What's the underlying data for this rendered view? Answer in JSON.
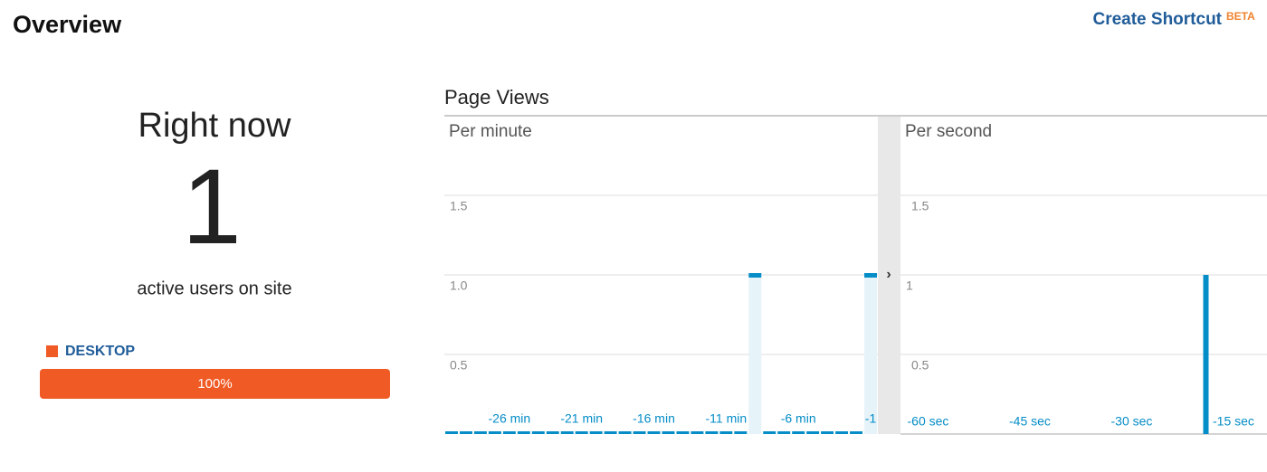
{
  "header": {
    "title": "Overview",
    "shortcut": "Create Shortcut",
    "badge": "BETA"
  },
  "right_now": {
    "title": "Right now",
    "count": 1,
    "caption": "active users on site",
    "devices": [
      {
        "name": "DESKTOP",
        "percent": 100,
        "percent_label": "100%",
        "color": "#f05a24"
      }
    ]
  },
  "panel": {
    "title": "Page Views"
  },
  "chart_data": [
    {
      "type": "bar",
      "title": "Per minute",
      "color": "#058dc7",
      "categories": [
        null,
        null,
        null,
        null,
        "-26 min",
        null,
        null,
        null,
        null,
        "-21 min",
        null,
        null,
        null,
        null,
        "-16 min",
        null,
        null,
        null,
        null,
        "-11 min",
        null,
        null,
        null,
        null,
        "-6 min",
        null,
        null,
        null,
        null,
        "-1"
      ],
      "values": [
        0,
        0,
        0,
        0,
        0,
        0,
        0,
        0,
        0,
        0,
        0,
        0,
        0,
        0,
        0,
        0,
        0,
        0,
        0,
        0,
        0,
        1,
        0,
        0,
        0,
        0,
        0,
        0,
        0,
        1
      ],
      "ylim": [
        0,
        2
      ],
      "yticks": [
        0.5,
        {
          "value": 1,
          "label": "1.0"
        },
        1.5
      ],
      "grid": true
    },
    {
      "type": "bar",
      "title": "Per second",
      "color": "#058dc7",
      "x": [
        -16
      ],
      "values": [
        1
      ],
      "xlim": [
        -61,
        -7
      ],
      "xticks": [
        {
          "value": -60,
          "label": "-60 sec"
        },
        {
          "value": -45,
          "label": "-45 sec"
        },
        {
          "value": -30,
          "label": "-30 sec"
        },
        {
          "value": -15,
          "label": "-15 sec"
        }
      ],
      "ylim": [
        0,
        2
      ],
      "yticks": [
        0.5,
        1,
        1.5
      ],
      "grid": true
    }
  ]
}
